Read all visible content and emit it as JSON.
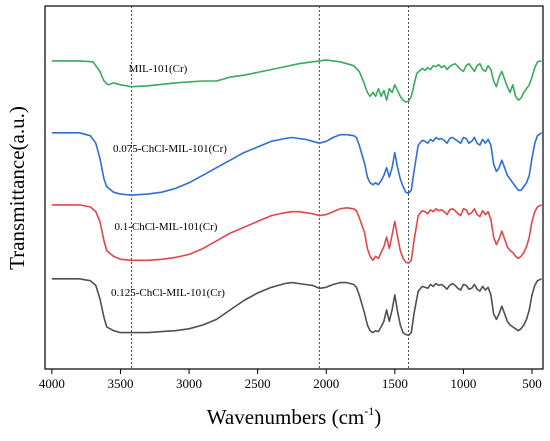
{
  "chart_data": {
    "type": "line",
    "xlabel": "Wavenumbers (cm",
    "xlabel_sup": "-1",
    "xlabel_suffix": ")",
    "ylabel": "Transmittance(a.u.)",
    "xlim": [
      4050,
      420
    ],
    "x_ticks": [
      4000,
      3500,
      3000,
      2500,
      2000,
      1500,
      1000,
      500
    ],
    "y_ticks_shown": false,
    "grid": false,
    "legend": "none",
    "reference_lines": [
      3420,
      2050,
      1400
    ],
    "series": [
      {
        "name": "MIL-101(Cr)",
        "color": "#3aaa5c",
        "x": [
          4000,
          3800,
          3700,
          3650,
          3620,
          3590,
          3550,
          3500,
          3420,
          3300,
          3100,
          3000,
          2900,
          2800,
          2700,
          2600,
          2500,
          2400,
          2300,
          2200,
          2100,
          2050,
          2000,
          1950,
          1900,
          1850,
          1800,
          1760,
          1730,
          1700,
          1680,
          1660,
          1640,
          1620,
          1600,
          1580,
          1560,
          1540,
          1520,
          1500,
          1480,
          1460,
          1440,
          1420,
          1400,
          1380,
          1360,
          1340,
          1300,
          1280,
          1260,
          1240,
          1220,
          1200,
          1180,
          1160,
          1140,
          1120,
          1100,
          1080,
          1060,
          1040,
          1020,
          1000,
          980,
          960,
          940,
          920,
          900,
          880,
          860,
          840,
          820,
          800,
          780,
          760,
          740,
          720,
          700,
          680,
          660,
          640,
          620,
          600,
          580,
          560,
          540,
          520,
          500,
          480,
          460,
          430
        ],
        "y": [
          0.985,
          0.985,
          0.98,
          0.93,
          0.88,
          0.86,
          0.87,
          0.86,
          0.85,
          0.855,
          0.87,
          0.875,
          0.88,
          0.88,
          0.9,
          0.91,
          0.925,
          0.94,
          0.955,
          0.97,
          0.98,
          0.985,
          0.99,
          0.985,
          0.98,
          0.97,
          0.96,
          0.93,
          0.88,
          0.82,
          0.8,
          0.82,
          0.8,
          0.84,
          0.8,
          0.83,
          0.78,
          0.84,
          0.82,
          0.86,
          0.83,
          0.8,
          0.78,
          0.77,
          0.775,
          0.8,
          0.86,
          0.92,
          0.945,
          0.935,
          0.95,
          0.94,
          0.96,
          0.955,
          0.965,
          0.95,
          0.96,
          0.94,
          0.955,
          0.965,
          0.97,
          0.955,
          0.94,
          0.93,
          0.96,
          0.97,
          0.95,
          0.93,
          0.96,
          0.97,
          0.94,
          0.93,
          0.96,
          0.94,
          0.88,
          0.85,
          0.9,
          0.93,
          0.89,
          0.85,
          0.82,
          0.86,
          0.8,
          0.78,
          0.79,
          0.82,
          0.84,
          0.86,
          0.9,
          0.95,
          0.98,
          0.985
        ]
      },
      {
        "name": "0.075-ChCl-MIL-101(Cr)",
        "color": "#2e6fd1",
        "x": [
          4000,
          3800,
          3720,
          3680,
          3650,
          3620,
          3600,
          3550,
          3500,
          3420,
          3300,
          3200,
          3100,
          3000,
          2900,
          2800,
          2700,
          2600,
          2500,
          2400,
          2300,
          2250,
          2200,
          2150,
          2100,
          2050,
          2000,
          1950,
          1900,
          1850,
          1800,
          1780,
          1760,
          1720,
          1700,
          1680,
          1660,
          1640,
          1620,
          1600,
          1580,
          1560,
          1540,
          1520,
          1500,
          1480,
          1460,
          1440,
          1420,
          1400,
          1380,
          1360,
          1330,
          1300,
          1280,
          1260,
          1240,
          1220,
          1200,
          1180,
          1160,
          1140,
          1120,
          1100,
          1080,
          1060,
          1040,
          1020,
          1000,
          980,
          960,
          940,
          920,
          900,
          880,
          860,
          840,
          820,
          800,
          780,
          760,
          740,
          720,
          700,
          680,
          660,
          640,
          620,
          600,
          580,
          560,
          540,
          520,
          500,
          480,
          460,
          430
        ],
        "y": [
          0.985,
          0.985,
          0.97,
          0.93,
          0.85,
          0.74,
          0.7,
          0.67,
          0.66,
          0.655,
          0.66,
          0.67,
          0.69,
          0.72,
          0.76,
          0.8,
          0.84,
          0.88,
          0.91,
          0.94,
          0.955,
          0.96,
          0.955,
          0.95,
          0.94,
          0.93,
          0.94,
          0.96,
          0.975,
          0.975,
          0.97,
          0.96,
          0.92,
          0.82,
          0.75,
          0.72,
          0.71,
          0.72,
          0.71,
          0.73,
          0.76,
          0.8,
          0.75,
          0.8,
          0.88,
          0.8,
          0.74,
          0.7,
          0.67,
          0.665,
          0.68,
          0.78,
          0.92,
          0.945,
          0.94,
          0.93,
          0.95,
          0.94,
          0.96,
          0.95,
          0.955,
          0.945,
          0.93,
          0.955,
          0.96,
          0.95,
          0.94,
          0.93,
          0.96,
          0.955,
          0.93,
          0.94,
          0.96,
          0.93,
          0.92,
          0.95,
          0.93,
          0.95,
          0.92,
          0.82,
          0.78,
          0.8,
          0.84,
          0.8,
          0.76,
          0.74,
          0.72,
          0.7,
          0.68,
          0.68,
          0.7,
          0.72,
          0.76,
          0.85,
          0.93,
          0.97,
          0.985
        ]
      },
      {
        "name": "0.1-ChCl-MIL-101(Cr)",
        "color": "#e04848",
        "x": [
          4000,
          3800,
          3720,
          3680,
          3650,
          3620,
          3600,
          3550,
          3500,
          3420,
          3300,
          3200,
          3100,
          3000,
          2900,
          2800,
          2700,
          2600,
          2500,
          2400,
          2300,
          2250,
          2200,
          2150,
          2100,
          2050,
          2000,
          1950,
          1900,
          1850,
          1800,
          1780,
          1760,
          1720,
          1700,
          1680,
          1660,
          1640,
          1620,
          1600,
          1580,
          1560,
          1540,
          1520,
          1500,
          1480,
          1460,
          1440,
          1420,
          1400,
          1380,
          1360,
          1330,
          1300,
          1280,
          1260,
          1240,
          1220,
          1200,
          1180,
          1160,
          1140,
          1120,
          1100,
          1080,
          1060,
          1040,
          1020,
          1000,
          980,
          960,
          940,
          920,
          900,
          880,
          860,
          840,
          820,
          800,
          780,
          760,
          740,
          720,
          700,
          680,
          660,
          640,
          620,
          600,
          580,
          560,
          540,
          520,
          500,
          480,
          460,
          430
        ],
        "y": [
          0.985,
          0.985,
          0.975,
          0.95,
          0.9,
          0.8,
          0.75,
          0.72,
          0.705,
          0.7,
          0.7,
          0.705,
          0.715,
          0.73,
          0.76,
          0.8,
          0.84,
          0.87,
          0.9,
          0.93,
          0.945,
          0.95,
          0.95,
          0.945,
          0.94,
          0.93,
          0.935,
          0.95,
          0.965,
          0.97,
          0.965,
          0.955,
          0.92,
          0.84,
          0.76,
          0.72,
          0.7,
          0.72,
          0.71,
          0.74,
          0.77,
          0.82,
          0.76,
          0.83,
          0.9,
          0.82,
          0.75,
          0.71,
          0.69,
          0.685,
          0.7,
          0.8,
          0.93,
          0.955,
          0.95,
          0.94,
          0.96,
          0.95,
          0.965,
          0.955,
          0.96,
          0.95,
          0.935,
          0.96,
          0.965,
          0.955,
          0.94,
          0.93,
          0.965,
          0.96,
          0.935,
          0.945,
          0.965,
          0.935,
          0.925,
          0.955,
          0.935,
          0.95,
          0.91,
          0.82,
          0.78,
          0.81,
          0.85,
          0.81,
          0.77,
          0.75,
          0.74,
          0.72,
          0.71,
          0.72,
          0.74,
          0.77,
          0.82,
          0.9,
          0.95,
          0.975,
          0.985
        ]
      },
      {
        "name": "0.125-ChCl-MIL-101(Cr)",
        "color": "#505050",
        "x": [
          4000,
          3800,
          3720,
          3680,
          3650,
          3620,
          3600,
          3550,
          3500,
          3420,
          3300,
          3200,
          3100,
          3000,
          2900,
          2800,
          2700,
          2600,
          2500,
          2400,
          2300,
          2250,
          2200,
          2150,
          2100,
          2050,
          2000,
          1950,
          1900,
          1850,
          1800,
          1780,
          1760,
          1720,
          1700,
          1680,
          1660,
          1640,
          1620,
          1600,
          1580,
          1560,
          1540,
          1520,
          1500,
          1480,
          1460,
          1440,
          1420,
          1400,
          1380,
          1360,
          1330,
          1300,
          1280,
          1260,
          1240,
          1220,
          1200,
          1180,
          1160,
          1140,
          1120,
          1100,
          1080,
          1060,
          1040,
          1020,
          1000,
          980,
          960,
          940,
          920,
          900,
          880,
          860,
          840,
          820,
          800,
          780,
          760,
          740,
          720,
          700,
          680,
          660,
          640,
          620,
          600,
          580,
          560,
          540,
          520,
          500,
          480,
          460,
          430
        ],
        "y": [
          0.985,
          0.985,
          0.975,
          0.95,
          0.88,
          0.78,
          0.73,
          0.71,
          0.7,
          0.7,
          0.7,
          0.705,
          0.71,
          0.72,
          0.74,
          0.77,
          0.82,
          0.87,
          0.91,
          0.94,
          0.96,
          0.965,
          0.96,
          0.955,
          0.95,
          0.935,
          0.94,
          0.955,
          0.965,
          0.965,
          0.955,
          0.94,
          0.9,
          0.8,
          0.74,
          0.71,
          0.7,
          0.71,
          0.705,
          0.73,
          0.76,
          0.82,
          0.76,
          0.82,
          0.9,
          0.81,
          0.74,
          0.7,
          0.69,
          0.685,
          0.7,
          0.8,
          0.92,
          0.945,
          0.94,
          0.935,
          0.955,
          0.945,
          0.96,
          0.95,
          0.955,
          0.945,
          0.93,
          0.95,
          0.96,
          0.95,
          0.935,
          0.925,
          0.955,
          0.95,
          0.93,
          0.935,
          0.955,
          0.93,
          0.92,
          0.945,
          0.925,
          0.94,
          0.9,
          0.8,
          0.77,
          0.8,
          0.84,
          0.8,
          0.76,
          0.74,
          0.73,
          0.72,
          0.71,
          0.72,
          0.74,
          0.77,
          0.82,
          0.9,
          0.95,
          0.975,
          0.985
        ]
      }
    ]
  }
}
